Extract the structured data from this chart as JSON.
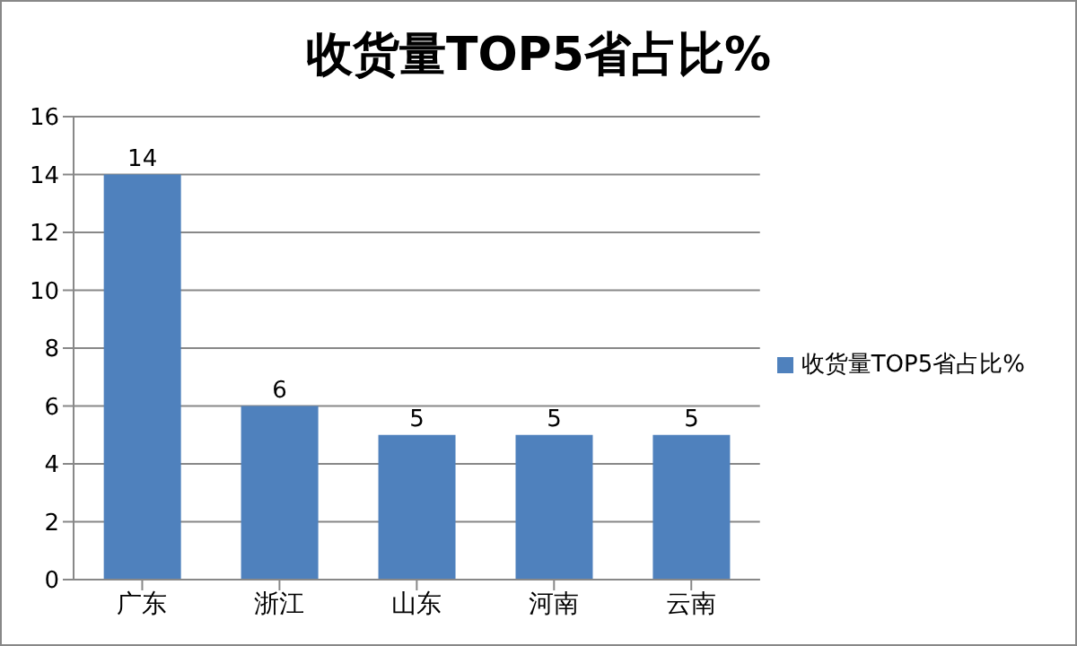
{
  "chart_data": {
    "type": "bar",
    "title": "收货量TOP5省占比%",
    "categories": [
      "广东",
      "浙江",
      "山东",
      "河南",
      "云南"
    ],
    "series": [
      {
        "name": "收货量TOP5省占比%",
        "color": "#4f81bd",
        "values": [
          14,
          6,
          5,
          5,
          5
        ]
      }
    ],
    "ylim": [
      0,
      16
    ],
    "yticks": [
      0,
      2,
      4,
      6,
      8,
      10,
      12,
      14,
      16
    ],
    "grid": "y",
    "legend": "right",
    "data_labels": true
  }
}
